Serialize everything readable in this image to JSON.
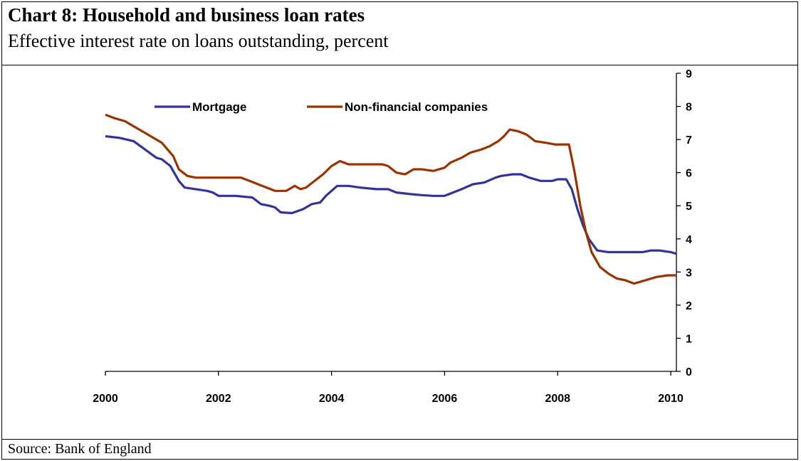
{
  "title": "Chart 8: Household and business loan rates",
  "subtitle": "Effective interest rate on loans outstanding, percent",
  "source": "Source: Bank of England",
  "colors": {
    "mortgage": "#333399",
    "nfc": "#993300"
  },
  "chart_data": {
    "type": "line",
    "title": "Chart 8: Household and business loan rates",
    "ylabel": "Effective interest rate on loans outstanding, percent",
    "xlim": [
      2000,
      2010.1
    ],
    "ylim": [
      0,
      9
    ],
    "y_ticks": [
      "0",
      "1",
      "2",
      "3",
      "4",
      "5",
      "6",
      "7",
      "8",
      "9"
    ],
    "x_ticks": [
      "2000",
      "2002",
      "2004",
      "2006",
      "2008",
      "2010"
    ],
    "y_axis_side": "right",
    "grid": false,
    "legend_position": "top-left",
    "series": [
      {
        "name": "Mortgage",
        "color": "#333399",
        "points": [
          [
            2000.0,
            7.1
          ],
          [
            2000.25,
            7.05
          ],
          [
            2000.5,
            6.95
          ],
          [
            2000.7,
            6.7
          ],
          [
            2000.9,
            6.45
          ],
          [
            2001.0,
            6.4
          ],
          [
            2001.15,
            6.2
          ],
          [
            2001.3,
            5.75
          ],
          [
            2001.4,
            5.55
          ],
          [
            2001.6,
            5.5
          ],
          [
            2001.8,
            5.45
          ],
          [
            2001.9,
            5.4
          ],
          [
            2002.0,
            5.3
          ],
          [
            2002.3,
            5.3
          ],
          [
            2002.6,
            5.25
          ],
          [
            2002.75,
            5.05
          ],
          [
            2002.9,
            5.0
          ],
          [
            2003.0,
            4.95
          ],
          [
            2003.1,
            4.8
          ],
          [
            2003.3,
            4.78
          ],
          [
            2003.5,
            4.9
          ],
          [
            2003.65,
            5.05
          ],
          [
            2003.8,
            5.1
          ],
          [
            2003.9,
            5.3
          ],
          [
            2004.0,
            5.45
          ],
          [
            2004.1,
            5.6
          ],
          [
            2004.3,
            5.6
          ],
          [
            2004.5,
            5.55
          ],
          [
            2004.8,
            5.5
          ],
          [
            2005.0,
            5.5
          ],
          [
            2005.15,
            5.4
          ],
          [
            2005.4,
            5.35
          ],
          [
            2005.6,
            5.32
          ],
          [
            2005.8,
            5.3
          ],
          [
            2006.0,
            5.3
          ],
          [
            2006.15,
            5.4
          ],
          [
            2006.3,
            5.5
          ],
          [
            2006.5,
            5.65
          ],
          [
            2006.7,
            5.7
          ],
          [
            2006.9,
            5.85
          ],
          [
            2007.0,
            5.9
          ],
          [
            2007.2,
            5.95
          ],
          [
            2007.35,
            5.95
          ],
          [
            2007.5,
            5.85
          ],
          [
            2007.7,
            5.75
          ],
          [
            2007.9,
            5.75
          ],
          [
            2008.0,
            5.8
          ],
          [
            2008.15,
            5.8
          ],
          [
            2008.25,
            5.5
          ],
          [
            2008.35,
            4.9
          ],
          [
            2008.45,
            4.4
          ],
          [
            2008.55,
            4.0
          ],
          [
            2008.7,
            3.65
          ],
          [
            2008.9,
            3.6
          ],
          [
            2009.2,
            3.6
          ],
          [
            2009.5,
            3.6
          ],
          [
            2009.65,
            3.65
          ],
          [
            2009.8,
            3.65
          ],
          [
            2010.0,
            3.6
          ],
          [
            2010.1,
            3.55
          ]
        ]
      },
      {
        "name": "Non-financial companies",
        "color": "#993300",
        "points": [
          [
            2000.0,
            7.75
          ],
          [
            2000.15,
            7.65
          ],
          [
            2000.35,
            7.55
          ],
          [
            2000.5,
            7.4
          ],
          [
            2000.7,
            7.2
          ],
          [
            2000.85,
            7.05
          ],
          [
            2001.0,
            6.9
          ],
          [
            2001.2,
            6.5
          ],
          [
            2001.3,
            6.1
          ],
          [
            2001.45,
            5.9
          ],
          [
            2001.6,
            5.85
          ],
          [
            2001.8,
            5.85
          ],
          [
            2002.0,
            5.85
          ],
          [
            2002.2,
            5.85
          ],
          [
            2002.4,
            5.85
          ],
          [
            2002.55,
            5.75
          ],
          [
            2002.7,
            5.65
          ],
          [
            2002.85,
            5.55
          ],
          [
            2003.0,
            5.45
          ],
          [
            2003.2,
            5.45
          ],
          [
            2003.35,
            5.6
          ],
          [
            2003.45,
            5.5
          ],
          [
            2003.55,
            5.55
          ],
          [
            2003.7,
            5.75
          ],
          [
            2003.85,
            5.95
          ],
          [
            2004.0,
            6.2
          ],
          [
            2004.15,
            6.35
          ],
          [
            2004.3,
            6.25
          ],
          [
            2004.5,
            6.25
          ],
          [
            2004.7,
            6.25
          ],
          [
            2004.9,
            6.25
          ],
          [
            2005.0,
            6.2
          ],
          [
            2005.15,
            6.0
          ],
          [
            2005.3,
            5.95
          ],
          [
            2005.45,
            6.1
          ],
          [
            2005.6,
            6.1
          ],
          [
            2005.8,
            6.05
          ],
          [
            2006.0,
            6.15
          ],
          [
            2006.1,
            6.3
          ],
          [
            2006.3,
            6.45
          ],
          [
            2006.45,
            6.6
          ],
          [
            2006.65,
            6.7
          ],
          [
            2006.8,
            6.8
          ],
          [
            2006.95,
            6.95
          ],
          [
            2007.05,
            7.1
          ],
          [
            2007.15,
            7.3
          ],
          [
            2007.3,
            7.25
          ],
          [
            2007.45,
            7.15
          ],
          [
            2007.6,
            6.95
          ],
          [
            2007.8,
            6.9
          ],
          [
            2007.95,
            6.85
          ],
          [
            2008.1,
            6.85
          ],
          [
            2008.2,
            6.85
          ],
          [
            2008.3,
            6.0
          ],
          [
            2008.4,
            5.0
          ],
          [
            2008.5,
            4.2
          ],
          [
            2008.6,
            3.6
          ],
          [
            2008.75,
            3.15
          ],
          [
            2008.9,
            2.95
          ],
          [
            2009.05,
            2.8
          ],
          [
            2009.2,
            2.75
          ],
          [
            2009.35,
            2.65
          ],
          [
            2009.45,
            2.7
          ],
          [
            2009.55,
            2.75
          ],
          [
            2009.75,
            2.85
          ],
          [
            2009.95,
            2.9
          ],
          [
            2010.1,
            2.9
          ]
        ]
      }
    ]
  }
}
